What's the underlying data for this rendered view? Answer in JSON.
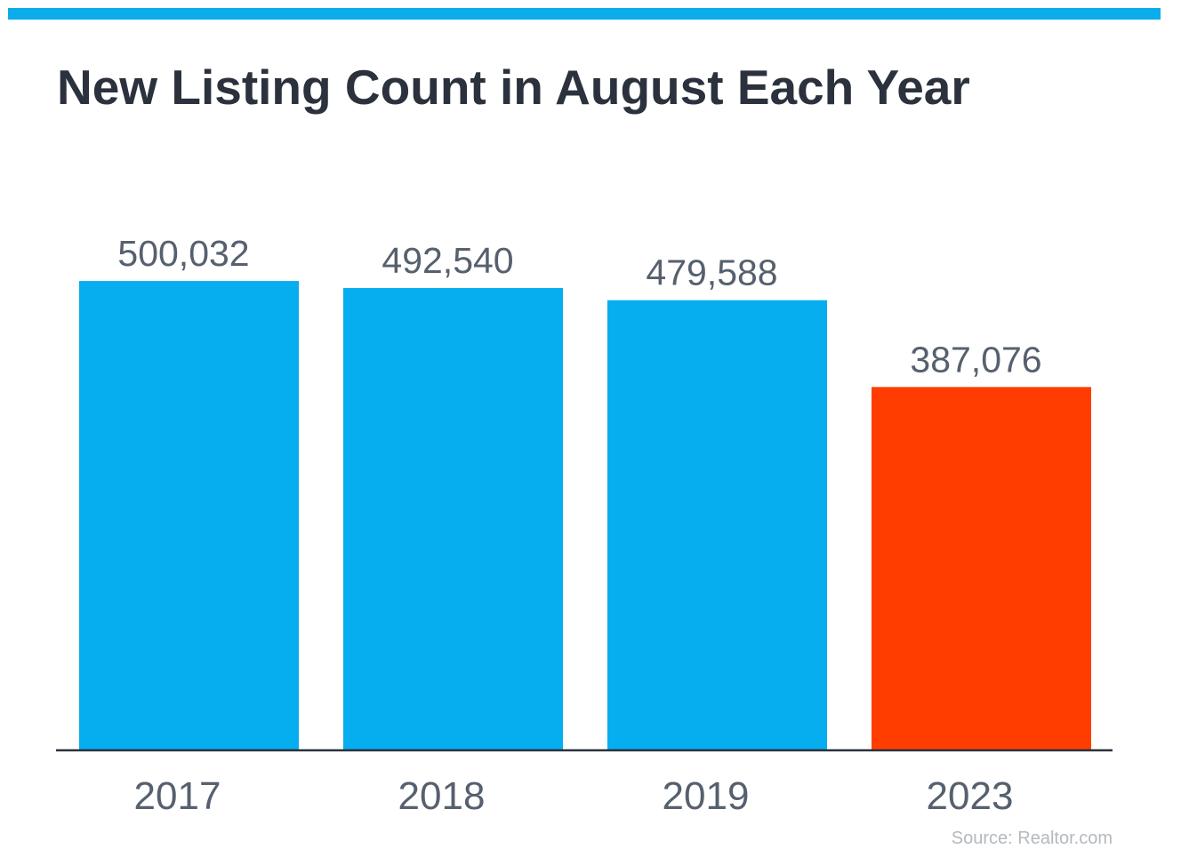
{
  "colors": {
    "accent_bar": "#0bacea",
    "bar_default": "#06adef",
    "bar_highlight": "#ff3d00",
    "axis": "#2b323d",
    "label_text": "#56606e",
    "title_text": "#2b323d",
    "source_text": "#b3b9bf"
  },
  "source": "Source: Realtor.com",
  "chart_data": {
    "type": "bar",
    "title": "New Listing Count in August Each Year",
    "categories": [
      "2017",
      "2018",
      "2019",
      "2023"
    ],
    "values": [
      500032,
      492540,
      479588,
      387076
    ],
    "value_labels": [
      "500,032",
      "492,540",
      "479,588",
      "387,076"
    ],
    "highlight_index": 3,
    "ylim": [
      0,
      520000
    ],
    "xlabel": "",
    "ylabel": "",
    "grid": false,
    "legend": "none"
  }
}
